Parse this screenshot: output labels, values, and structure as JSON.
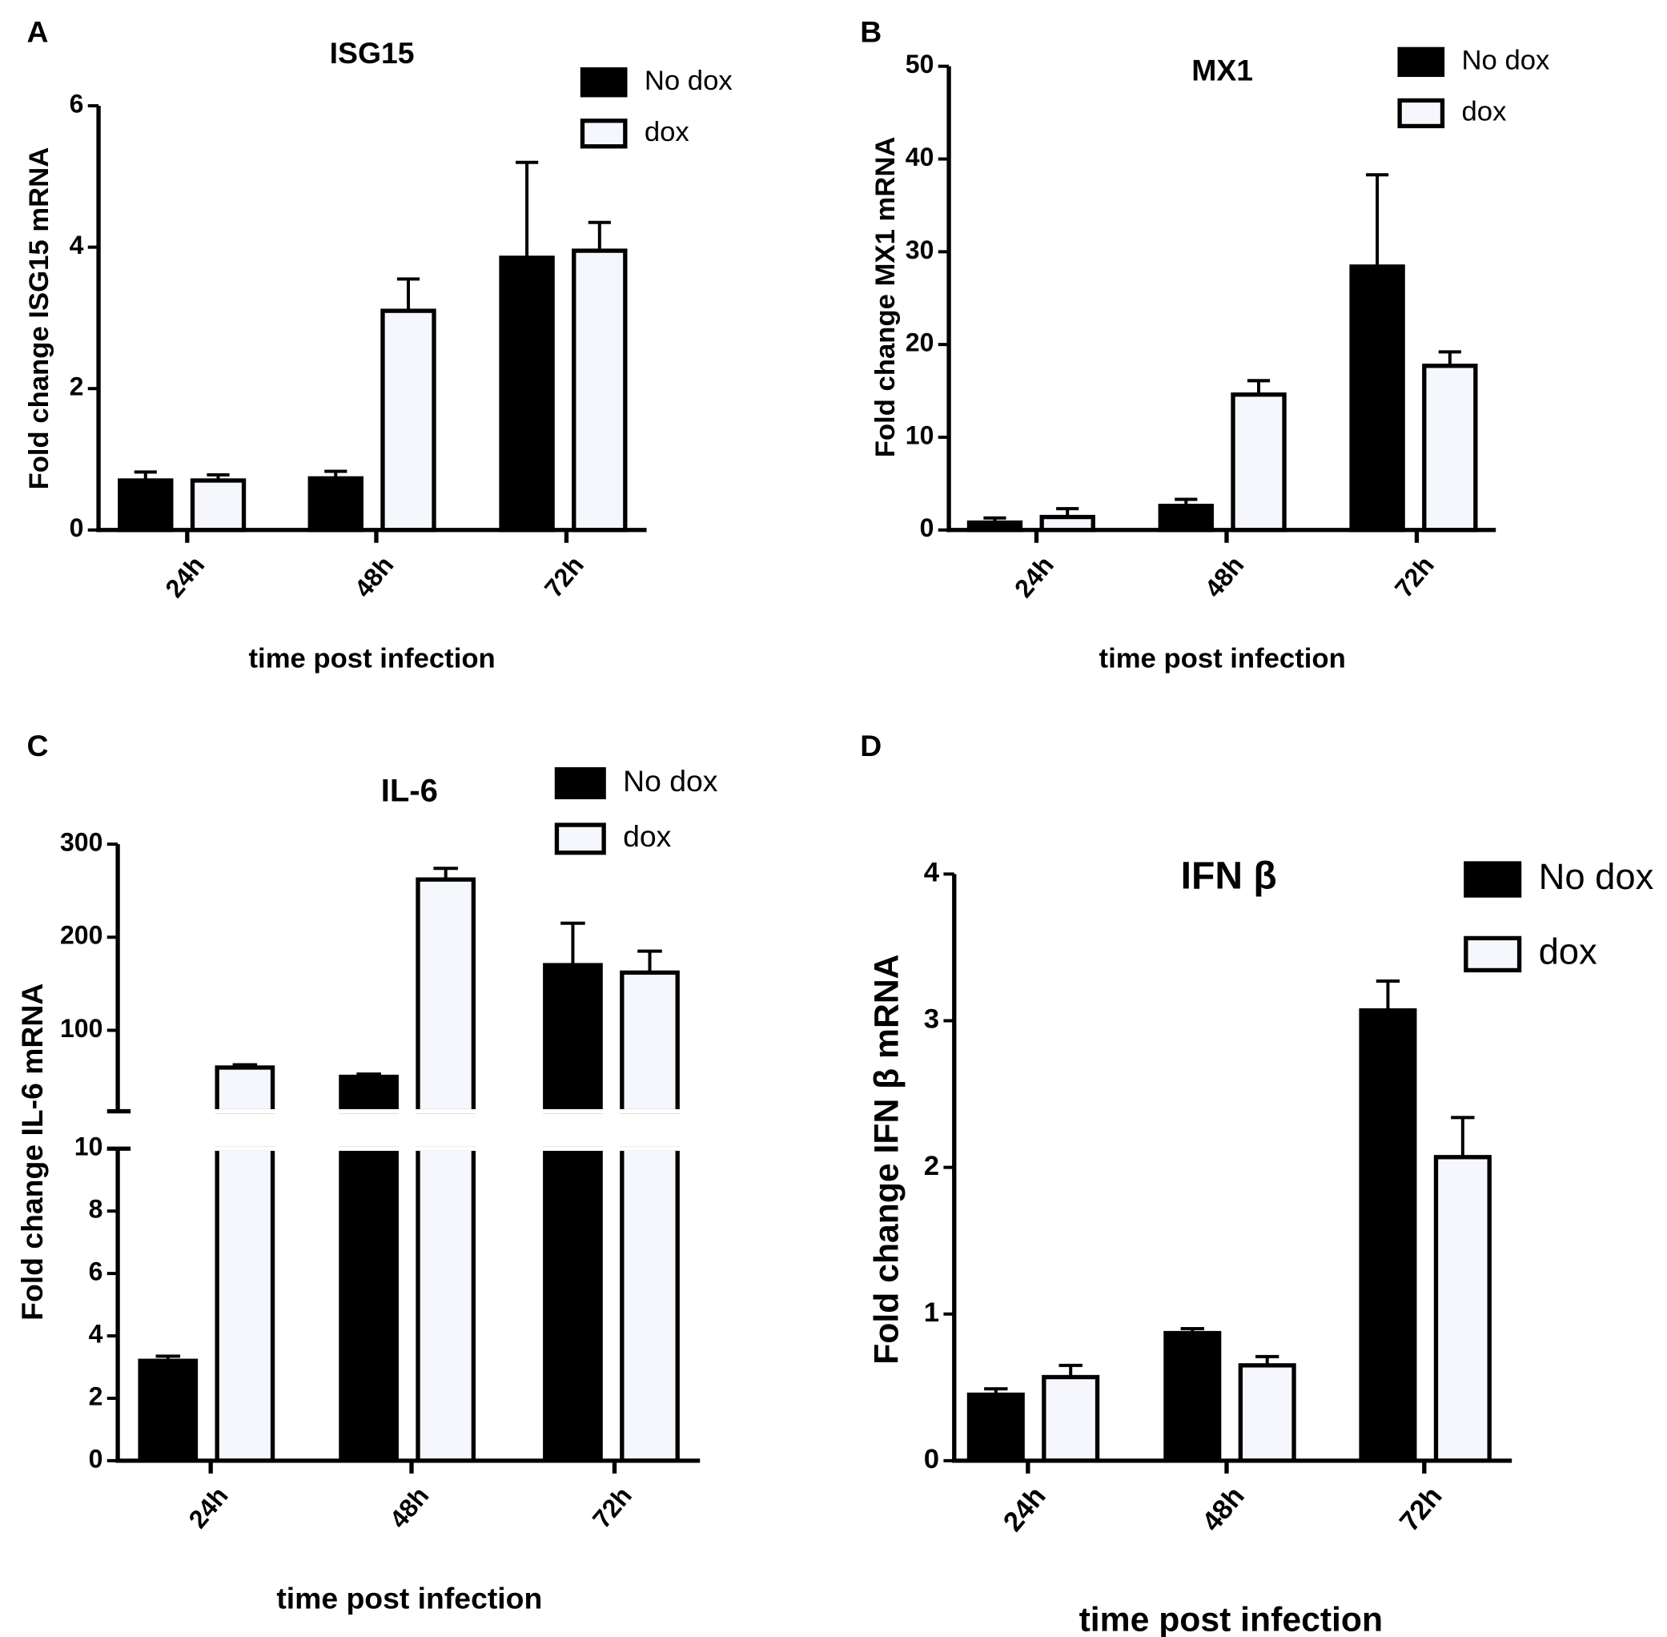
{
  "chart_data": [
    {
      "panel": "A",
      "type": "bar",
      "title": "ISG15",
      "xlabel": "time post infection",
      "ylabel": "Fold change ISG15 mRNA",
      "categories": [
        "24h",
        "48h",
        "72h"
      ],
      "ylim": [
        0,
        6
      ],
      "yticks": [
        0,
        2,
        4,
        6
      ],
      "series": [
        {
          "name": "No dox",
          "values": [
            0.7,
            0.73,
            3.85
          ],
          "errors": [
            0.12,
            0.1,
            1.35
          ],
          "color": "#000000"
        },
        {
          "name": "dox",
          "values": [
            0.7,
            3.1,
            3.95
          ],
          "errors": [
            0.08,
            0.45,
            0.4
          ],
          "color": "#f5f7fc"
        }
      ],
      "legend": "top-right"
    },
    {
      "panel": "B",
      "type": "bar",
      "title": "MX1",
      "xlabel": "time post infection",
      "ylabel": "Fold change  MX1 mRNA",
      "categories": [
        "24h",
        "48h",
        "72h"
      ],
      "ylim": [
        0,
        50
      ],
      "yticks": [
        0,
        10,
        20,
        30,
        40,
        50
      ],
      "series": [
        {
          "name": "No dox",
          "values": [
            0.8,
            2.6,
            28.4
          ],
          "errors": [
            0.5,
            0.7,
            9.9
          ],
          "color": "#000000"
        },
        {
          "name": "dox",
          "values": [
            1.4,
            14.6,
            17.7
          ],
          "errors": [
            0.9,
            1.5,
            1.5
          ],
          "color": "#f5f7fc"
        }
      ],
      "legend": "top-right"
    },
    {
      "panel": "C",
      "type": "bar",
      "title": "IL-6",
      "xlabel": "time post infection",
      "ylabel": "Fold change IL-6 mRNA",
      "categories": [
        "24h",
        "48h",
        "72h"
      ],
      "axis_break": true,
      "ylim_lower": [
        0,
        10
      ],
      "yticks_lower": [
        0,
        2,
        4,
        6,
        8,
        10
      ],
      "ylim_upper": [
        13,
        300
      ],
      "yticks_upper": [
        100,
        200,
        300
      ],
      "series": [
        {
          "name": "No dox",
          "values": [
            3.2,
            50,
            170
          ],
          "errors": [
            0.15,
            3,
            45
          ],
          "color": "#000000"
        },
        {
          "name": "dox",
          "values": [
            60,
            262,
            162
          ],
          "errors": [
            3,
            12,
            23
          ],
          "color": "#f5f7fc"
        }
      ],
      "legend": "top-right"
    },
    {
      "panel": "D",
      "type": "bar",
      "title": "IFN β",
      "xlabel": "time post infection",
      "ylabel": "Fold change IFN β mRNA",
      "categories": [
        "24h",
        "48h",
        "72h"
      ],
      "ylim": [
        0,
        4
      ],
      "yticks": [
        0,
        1,
        2,
        3,
        4
      ],
      "series": [
        {
          "name": "No dox",
          "values": [
            0.45,
            0.87,
            3.07
          ],
          "errors": [
            0.04,
            0.03,
            0.2
          ],
          "color": "#000000"
        },
        {
          "name": "dox",
          "values": [
            0.57,
            0.65,
            2.07
          ],
          "errors": [
            0.08,
            0.06,
            0.27
          ],
          "color": "#f5f7fc"
        }
      ],
      "legend": "top-right"
    }
  ]
}
